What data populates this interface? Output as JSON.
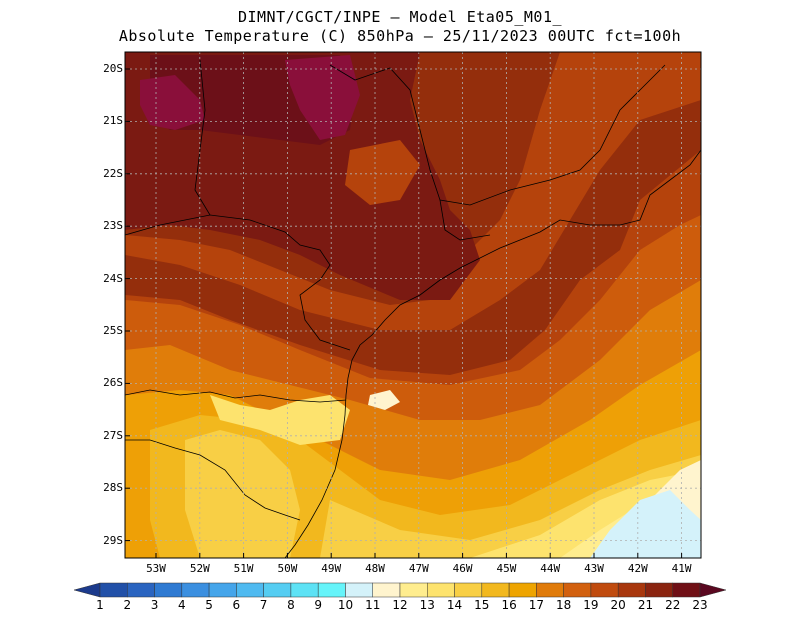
{
  "header": {
    "line1": "DIMNT/CGCT/INPE —  Model Eta05_M01_",
    "line2": "Absolute Temperature (C) 850hPa —  25/11/2023 00UTC fct=100h"
  },
  "axes": {
    "lat_labels": [
      "20S",
      "21S",
      "22S",
      "23S",
      "24S",
      "25S",
      "26S",
      "27S",
      "28S",
      "29S"
    ],
    "lon_labels": [
      "53W",
      "52W",
      "51W",
      "50W",
      "49W",
      "48W",
      "47W",
      "46W",
      "45W",
      "44W",
      "43W",
      "42W",
      "41W"
    ]
  },
  "colorbar": {
    "levels": [
      "1",
      "2",
      "3",
      "4",
      "5",
      "6",
      "7",
      "8",
      "9",
      "10",
      "11",
      "12",
      "13",
      "14",
      "15",
      "16",
      "17",
      "18",
      "19",
      "20",
      "21",
      "22",
      "23"
    ],
    "colors": [
      "#1c3a8c",
      "#2150a8",
      "#2a64c0",
      "#2f7ad2",
      "#3b8fe0",
      "#45a5ea",
      "#4fbaf0",
      "#55cdf2",
      "#5de2f5",
      "#66f4fa",
      "#d4f2fa",
      "#fff4ce",
      "#ffed8e",
      "#fde36e",
      "#f8cf45",
      "#f2b81e",
      "#eea400",
      "#e07b0a",
      "#d2600e",
      "#c04b0e",
      "#a8370d",
      "#8a2410",
      "#701016",
      "#5a0820"
    ]
  },
  "field_colors": {
    "t23": "#6c1018",
    "t22": "#7b1a12",
    "t21": "#942e0c",
    "t20": "#b5430c",
    "t19": "#cd5c0c",
    "t18": "#e07d0a",
    "t17": "#eea006",
    "t16": "#f2b81e",
    "t15": "#f8cf45",
    "t14": "#fde36e",
    "t13": "#ffed8e",
    "t12": "#fff4ce",
    "t11": "#d4f2fa",
    "hot": "#8a0f3a"
  }
}
